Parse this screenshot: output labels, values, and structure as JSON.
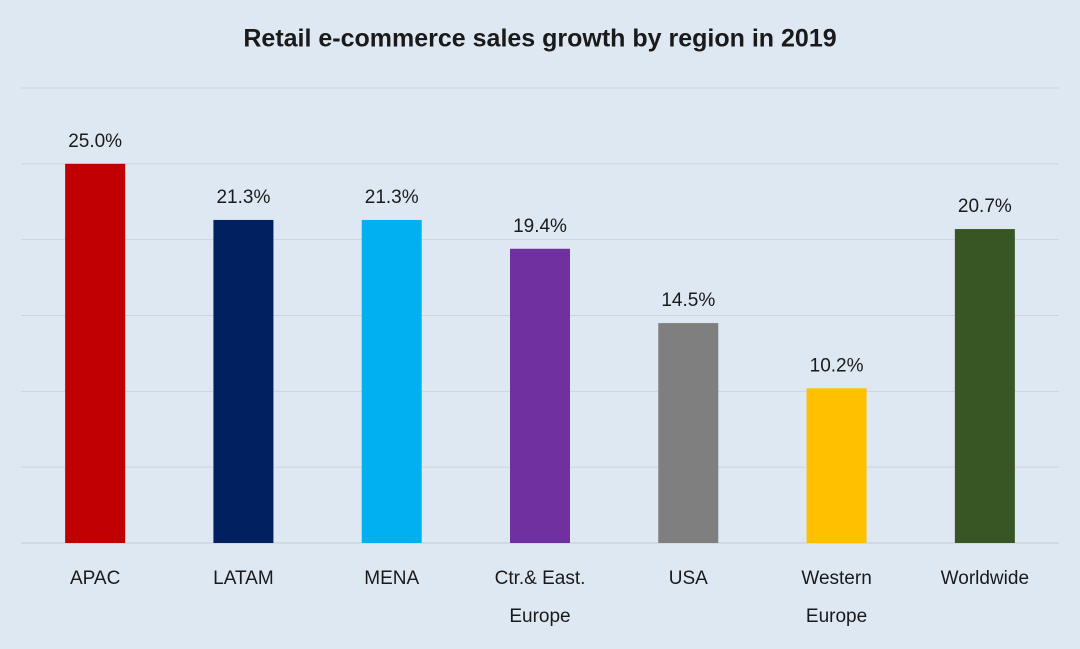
{
  "chart_data": {
    "type": "bar",
    "title": "Retail e-commerce sales growth by region in 2019",
    "categories": [
      "APAC",
      "LATAM",
      "MENA",
      "Ctr.& East. Europe",
      "USA",
      "Western Europe",
      "Worldwide"
    ],
    "values": [
      25.0,
      21.3,
      21.3,
      19.4,
      14.5,
      10.2,
      20.7
    ],
    "value_labels": [
      "25.0%",
      "21.3%",
      "21.3%",
      "19.4%",
      "14.5%",
      "10.2%",
      "20.7%"
    ],
    "colors": [
      "#c00000",
      "#002060",
      "#00b0f0",
      "#7030a0",
      "#7f7f7f",
      "#ffc000",
      "#375623"
    ],
    "ylim": [
      0,
      30
    ],
    "yticks": [
      0,
      5,
      10,
      15,
      20,
      25,
      30
    ],
    "grid": true
  }
}
